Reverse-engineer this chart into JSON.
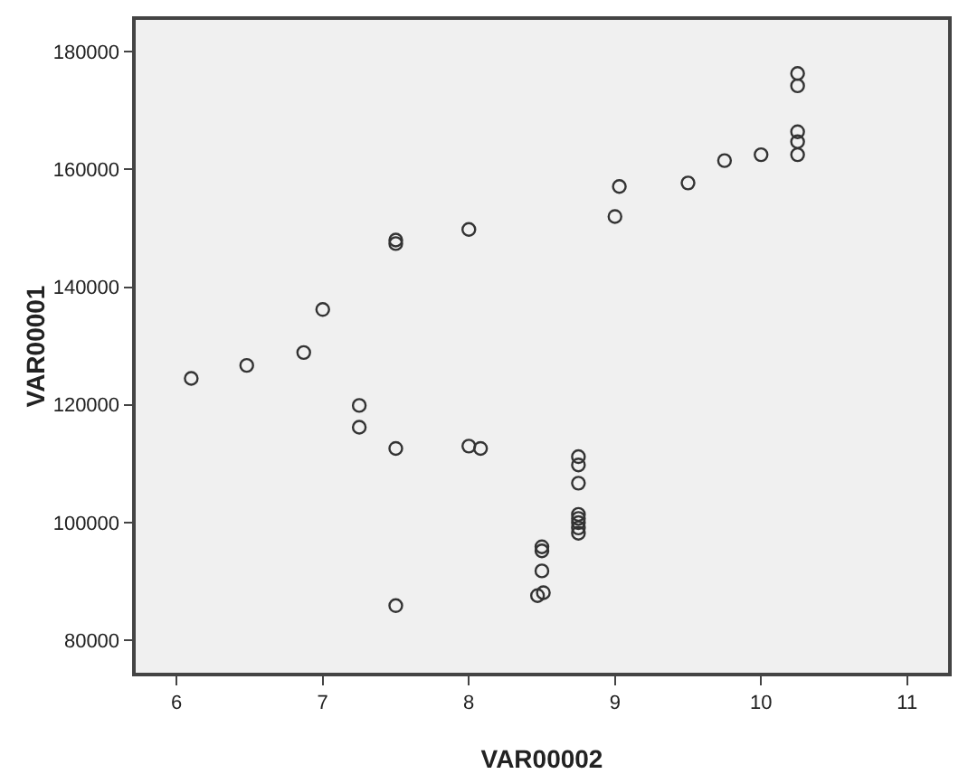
{
  "chart_data": {
    "type": "scatter",
    "xlabel": "VAR00002",
    "ylabel": "VAR00001",
    "marker": "circle",
    "grid": false,
    "xlim": [
      5.72,
      11.28
    ],
    "xticks": [
      6,
      7,
      8,
      9,
      10,
      11
    ],
    "ylim": [
      74500,
      185400
    ],
    "yticks": [
      80000,
      100000,
      120000,
      140000,
      160000,
      180000
    ],
    "series": [
      {
        "color": "#333333",
        "x": [
          6.1,
          6.48,
          6.87,
          7.0,
          7.5,
          7.5,
          8.0,
          9.03,
          9.0,
          9.5,
          9.75,
          10.0,
          10.25,
          10.25,
          10.25,
          10.25,
          10.25,
          7.25,
          7.25,
          7.5,
          8.0,
          8.08,
          7.5,
          8.5,
          8.5,
          8.5,
          8.47,
          8.51,
          8.75,
          8.75,
          8.75,
          8.75,
          8.75,
          8.75,
          8.75,
          8.75
        ],
        "values": [
          124500,
          126700,
          128900,
          136200,
          148000,
          147400,
          149800,
          157100,
          152000,
          157700,
          161500,
          162500,
          176300,
          174200,
          166400,
          164700,
          162500,
          119900,
          116200,
          112600,
          113000,
          112600,
          85900,
          95900,
          95200,
          91800,
          87600,
          88100,
          111200,
          109800,
          106700,
          101400,
          100700,
          100000,
          99100,
          98200
        ]
      }
    ]
  }
}
